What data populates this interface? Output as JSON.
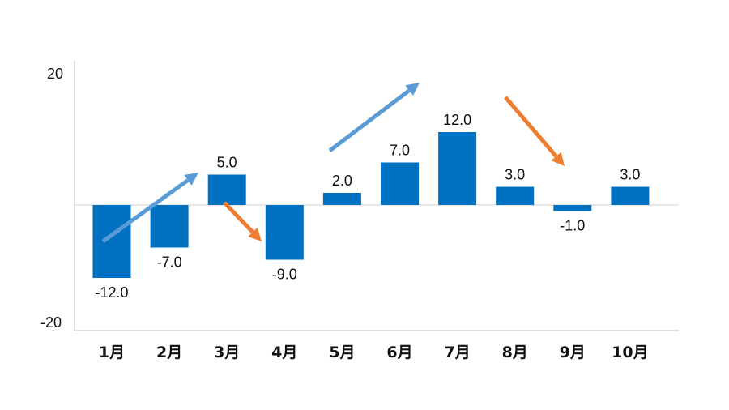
{
  "chart_data": {
    "type": "bar",
    "title": "",
    "xlabel": "",
    "ylabel": "",
    "categories": [
      "1月",
      "2月",
      "3月",
      "4月",
      "5月",
      "6月",
      "7月",
      "8月",
      "9月",
      "10月"
    ],
    "values": [
      -12.0,
      -7.0,
      5.0,
      -9.0,
      2.0,
      7.0,
      12.0,
      3.0,
      -1.0,
      3.0
    ],
    "data_labels": [
      "-12.0",
      "-7.0",
      "5.0",
      "-9.0",
      "2.0",
      "7.0",
      "12.0",
      "3.0",
      "-1.0",
      "3.0"
    ],
    "ylim": [
      -20,
      20
    ],
    "y_ticks": [
      "20",
      "-20"
    ],
    "grid": false,
    "legend": "none",
    "annotations": [
      {
        "type": "arrow",
        "color": "#5B9BD5",
        "from_category": "1月",
        "to_category": "3月",
        "direction": "up"
      },
      {
        "type": "arrow",
        "color": "#ED7D31",
        "from_category": "3月",
        "to_category": "4月",
        "direction": "down"
      },
      {
        "type": "arrow",
        "color": "#5B9BD5",
        "from_category": "5月",
        "to_category": "7月",
        "direction": "up"
      },
      {
        "type": "arrow",
        "color": "#ED7D31",
        "from_category": "8月",
        "to_category": "9月",
        "direction": "down"
      }
    ],
    "colors": {
      "bar": "#0070C0",
      "up_arrow": "#5B9BD5",
      "down_arrow": "#ED7D31"
    }
  }
}
